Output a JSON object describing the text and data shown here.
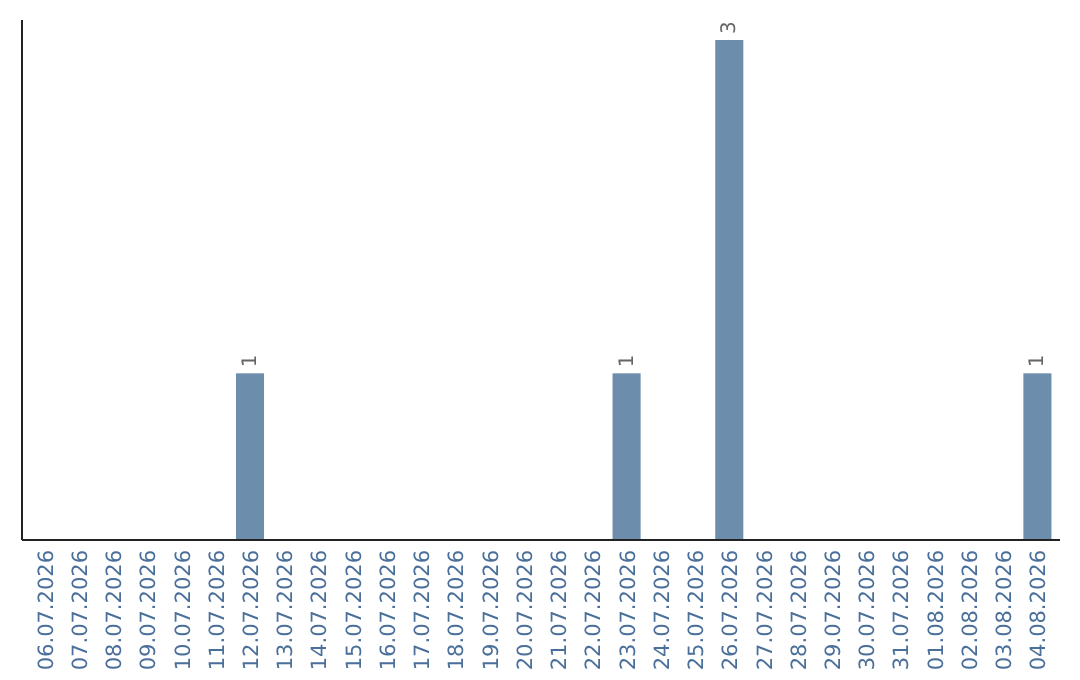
{
  "chart_data": {
    "type": "bar",
    "categories": [
      "06.07.2026",
      "07.07.2026",
      "08.07.2026",
      "09.07.2026",
      "10.07.2026",
      "11.07.2026",
      "12.07.2026",
      "13.07.2026",
      "14.07.2026",
      "15.07.2026",
      "16.07.2026",
      "17.07.2026",
      "18.07.2026",
      "19.07.2026",
      "20.07.2026",
      "21.07.2026",
      "22.07.2026",
      "23.07.2026",
      "24.07.2026",
      "25.07.2026",
      "26.07.2026",
      "27.07.2026",
      "28.07.2026",
      "29.07.2026",
      "30.07.2026",
      "31.07.2026",
      "01.08.2026",
      "02.08.2026",
      "03.08.2026",
      "04.08.2026"
    ],
    "values": [
      0,
      0,
      0,
      0,
      0,
      0,
      1,
      0,
      0,
      0,
      0,
      0,
      0,
      0,
      0,
      0,
      0,
      1,
      0,
      0,
      3,
      0,
      0,
      0,
      0,
      0,
      0,
      0,
      0,
      1
    ],
    "value_labels": [
      null,
      null,
      null,
      null,
      null,
      null,
      "1",
      null,
      null,
      null,
      null,
      null,
      null,
      null,
      null,
      null,
      null,
      "1",
      null,
      null,
      "3",
      null,
      null,
      null,
      null,
      null,
      null,
      null,
      null,
      "1"
    ],
    "color": "#6d8dac",
    "ylim": [
      0,
      3.12
    ],
    "tick_labels": "x"
  }
}
